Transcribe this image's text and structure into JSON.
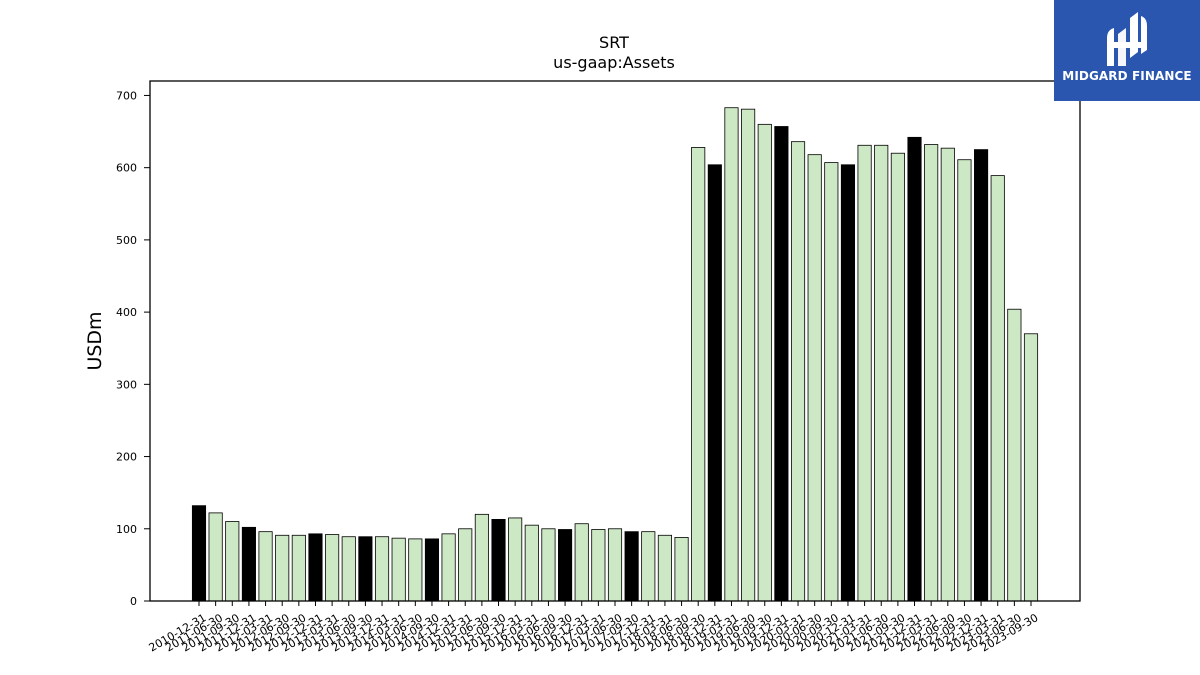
{
  "chart_data": {
    "type": "bar",
    "title": "SRT",
    "subtitle": "us-gaap:Assets",
    "ylabel": "USDm",
    "xlabel": "",
    "ylim": [
      0,
      720
    ],
    "yticks": [
      0,
      100,
      200,
      300,
      400,
      500,
      600,
      700
    ],
    "grid": false,
    "categories": [
      "2010-12-31",
      "2011-06-30",
      "2011-09-30",
      "2011-12-31",
      "2012-03-31",
      "2012-06-30",
      "2012-09-30",
      "2012-12-31",
      "2013-03-31",
      "2013-06-30",
      "2013-09-30",
      "2013-12-31",
      "2014-03-31",
      "2014-06-30",
      "2014-09-30",
      "2014-12-31",
      "2015-03-31",
      "2015-06-30",
      "2015-09-30",
      "2015-12-31",
      "2016-03-31",
      "2016-06-30",
      "2016-09-30",
      "2016-12-31",
      "2017-03-31",
      "2017-06-30",
      "2017-09-30",
      "2017-12-31",
      "2018-03-31",
      "2018-06-30",
      "2018-09-30",
      "2018-12-31",
      "2019-03-31",
      "2019-06-30",
      "2019-09-30",
      "2019-12-31",
      "2020-03-31",
      "2020-06-30",
      "2020-09-30",
      "2020-12-31",
      "2021-03-31",
      "2021-06-30",
      "2021-09-30",
      "2021-12-31",
      "2022-03-31",
      "2022-06-30",
      "2022-09-30",
      "2022-12-31",
      "2023-03-31",
      "2023-06-30",
      "2023-09-30"
    ],
    "values": [
      132,
      122,
      110,
      102,
      96,
      91,
      91,
      93,
      92,
      89,
      89,
      89,
      87,
      86,
      86,
      93,
      100,
      120,
      113,
      115,
      105,
      100,
      99,
      107,
      99,
      100,
      96,
      96,
      91,
      88,
      628,
      604,
      683,
      681,
      660,
      657,
      636,
      618,
      607,
      604,
      631,
      631,
      620,
      642,
      632,
      627,
      611,
      625,
      589,
      404,
      370
    ],
    "bar_colors": [
      "#000000",
      "#cde8c4",
      "#cde8c4",
      "#000000",
      "#cde8c4",
      "#cde8c4",
      "#cde8c4",
      "#000000",
      "#cde8c4",
      "#cde8c4",
      "#000000",
      "#cde8c4",
      "#cde8c4",
      "#cde8c4",
      "#000000",
      "#cde8c4",
      "#cde8c4",
      "#cde8c4",
      "#000000",
      "#cde8c4",
      "#cde8c4",
      "#cde8c4",
      "#000000",
      "#cde8c4",
      "#cde8c4",
      "#cde8c4",
      "#000000",
      "#cde8c4",
      "#cde8c4",
      "#cde8c4",
      "#cde8c4",
      "#000000",
      "#cde8c4",
      "#cde8c4",
      "#cde8c4",
      "#000000",
      "#cde8c4",
      "#cde8c4",
      "#cde8c4",
      "#000000",
      "#cde8c4",
      "#cde8c4",
      "#cde8c4",
      "#000000",
      "#cde8c4",
      "#cde8c4",
      "#cde8c4",
      "#000000",
      "#cde8c4",
      "#cde8c4",
      "#cde8c4"
    ]
  },
  "brand": {
    "name": "MIDGARD FINANCE",
    "logo_bg": "#2a56b0",
    "logo_icon": "midgard-logo-icon"
  }
}
